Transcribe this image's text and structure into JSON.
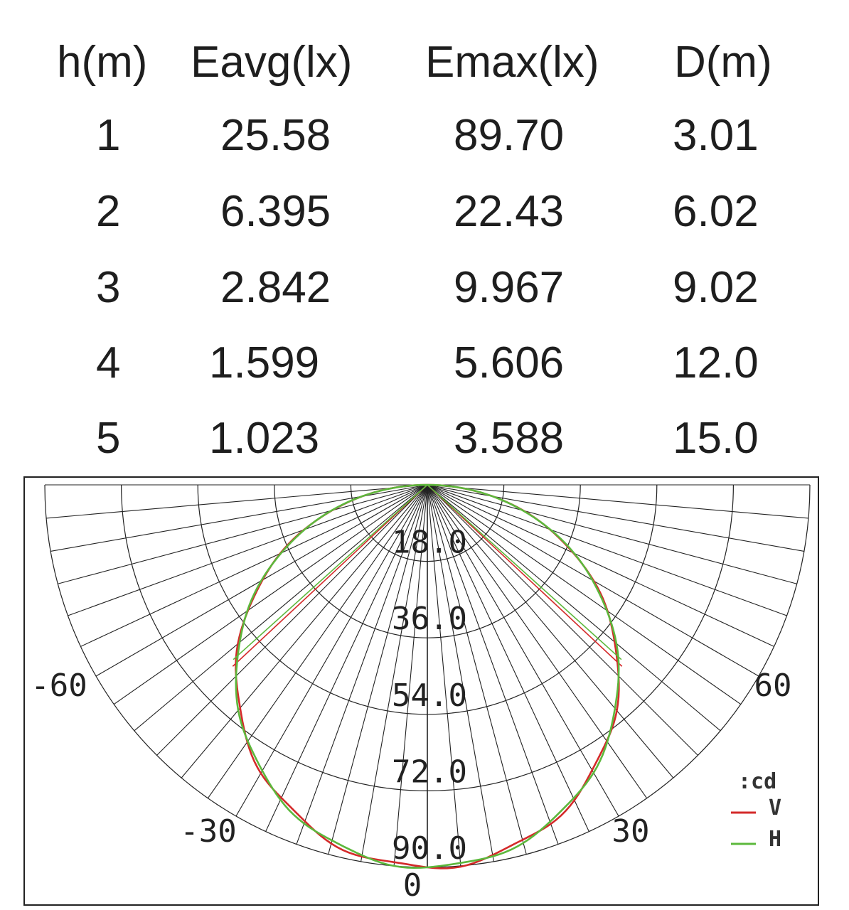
{
  "table": {
    "headers": [
      "h(m)",
      "Eavg(lx)",
      "Emax(lx)",
      "D(m)"
    ],
    "rows": [
      [
        "1",
        "25.58",
        "89.70",
        "3.01"
      ],
      [
        "2",
        "6.395",
        "22.43",
        "6.02"
      ],
      [
        "3",
        "2.842",
        "9.967",
        "9.02"
      ],
      [
        "4",
        "1.599",
        "5.606",
        "12.0"
      ],
      [
        "5",
        "1.023",
        "3.588",
        "15.0"
      ]
    ]
  },
  "chart_data": {
    "type": "polar",
    "unit_label": ":cd",
    "radial_ticks": [
      "18.0",
      "36.0",
      "54.0",
      "72.0",
      "90.0"
    ],
    "radial_values": [
      18,
      36,
      54,
      72,
      90
    ],
    "angle_labels": [
      "-60",
      "60",
      "-30",
      "30",
      "0"
    ],
    "angle_label_values": [
      -60,
      60,
      -30,
      30,
      0
    ],
    "angle_range": [
      -90,
      90
    ],
    "angle_grid_step_deg": 5,
    "rmax": 90,
    "series": [
      {
        "name": "V",
        "color": "#d42a2a",
        "peak_cd": 90,
        "shape": "cos",
        "wing_angle_deg": 47
      },
      {
        "name": "H",
        "color": "#5cb83c",
        "peak_cd": 90,
        "shape": "cos",
        "wing_angle_deg": 48
      }
    ],
    "legend_position": "bottom-right"
  }
}
